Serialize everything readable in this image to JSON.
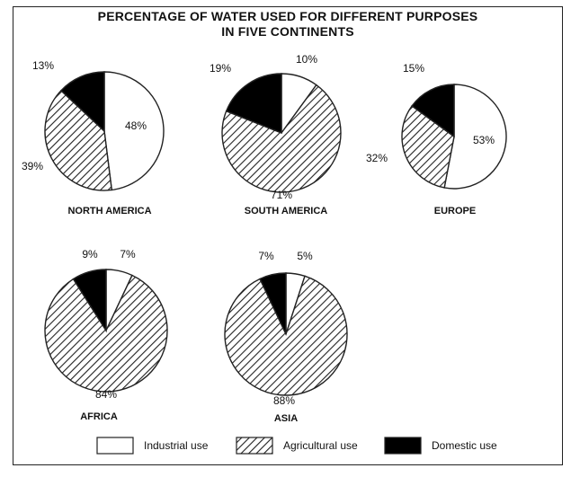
{
  "chart_data": {
    "type": "pie",
    "title": "PERCENTAGE OF WATER USED FOR DIFFERENT PURPOSES",
    "subtitle": "IN FIVE CONTINENTS",
    "categories": [
      "Industrial use",
      "Agricultural use",
      "Domestic use"
    ],
    "legend_position": "bottom",
    "colors": {
      "industrial": "#ffffff",
      "agricultural": "hatched",
      "domestic": "#000000",
      "stroke": "#222222"
    },
    "pies": [
      {
        "name": "NORTH AMERICA",
        "values": [
          48,
          39,
          13
        ],
        "labels": [
          "48%",
          "39%",
          "13%"
        ]
      },
      {
        "name": "SOUTH AMERICA",
        "values": [
          10,
          71,
          19
        ],
        "labels": [
          "10%",
          "71%",
          "19%"
        ]
      },
      {
        "name": "EUROPE",
        "values": [
          53,
          32,
          15
        ],
        "labels": [
          "53%",
          "32%",
          "15%"
        ]
      },
      {
        "name": "AFRICA",
        "values": [
          7,
          84,
          9
        ],
        "labels": [
          "7%",
          "84%",
          "9%"
        ]
      },
      {
        "name": "ASIA",
        "values": [
          5,
          88,
          7
        ],
        "labels": [
          "5%",
          "88%",
          "7%"
        ]
      }
    ]
  }
}
